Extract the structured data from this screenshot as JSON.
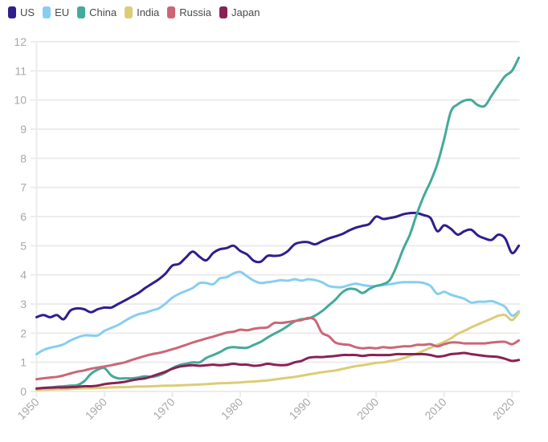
{
  "chart_data": {
    "type": "line",
    "title": "",
    "xlabel": "",
    "ylabel": "",
    "xlim": [
      1950,
      2021
    ],
    "ylim": [
      0,
      12
    ],
    "grid": true,
    "legend_position": "top-left",
    "y_ticks": [
      "0",
      "1",
      "2",
      "3",
      "4",
      "5",
      "6",
      "7",
      "8",
      "9",
      "10",
      "11",
      "12"
    ],
    "x_ticks": [
      "1950",
      "1960",
      "1970",
      "1980",
      "1990",
      "2000",
      "2010",
      "2020"
    ],
    "x_tick_values": [
      1950,
      1960,
      1970,
      1980,
      1990,
      2000,
      2010,
      2020
    ],
    "x": [
      1950,
      1951,
      1952,
      1953,
      1954,
      1955,
      1956,
      1957,
      1958,
      1959,
      1960,
      1961,
      1962,
      1963,
      1964,
      1965,
      1966,
      1967,
      1968,
      1969,
      1970,
      1971,
      1972,
      1973,
      1974,
      1975,
      1976,
      1977,
      1978,
      1979,
      1980,
      1981,
      1982,
      1983,
      1984,
      1985,
      1986,
      1987,
      1988,
      1989,
      1990,
      1991,
      1992,
      1993,
      1994,
      1995,
      1996,
      1997,
      1998,
      1999,
      2000,
      2001,
      2002,
      2003,
      2004,
      2005,
      2006,
      2007,
      2008,
      2009,
      2010,
      2011,
      2012,
      2013,
      2014,
      2015,
      2016,
      2017,
      2018,
      2019,
      2020,
      2021
    ],
    "series": [
      {
        "name": "US",
        "color": "#2e1f8c",
        "values": [
          2.55,
          2.62,
          2.55,
          2.62,
          2.48,
          2.78,
          2.85,
          2.82,
          2.72,
          2.82,
          2.88,
          2.88,
          3.0,
          3.12,
          3.25,
          3.38,
          3.55,
          3.7,
          3.85,
          4.05,
          4.32,
          4.38,
          4.6,
          4.8,
          4.62,
          4.5,
          4.75,
          4.88,
          4.92,
          5.0,
          4.82,
          4.7,
          4.48,
          4.45,
          4.65,
          4.65,
          4.68,
          4.82,
          5.05,
          5.12,
          5.12,
          5.05,
          5.15,
          5.25,
          5.32,
          5.4,
          5.52,
          5.62,
          5.68,
          5.75,
          6.0,
          5.92,
          5.95,
          6.0,
          6.08,
          6.12,
          6.12,
          6.05,
          5.95,
          5.5,
          5.7,
          5.58,
          5.38,
          5.5,
          5.55,
          5.35,
          5.25,
          5.2,
          5.38,
          5.25,
          4.75,
          5.0
        ]
      },
      {
        "name": "EU",
        "color": "#87cef0",
        "values": [
          1.28,
          1.42,
          1.5,
          1.55,
          1.62,
          1.75,
          1.85,
          1.92,
          1.92,
          1.92,
          2.08,
          2.18,
          2.28,
          2.42,
          2.55,
          2.65,
          2.7,
          2.78,
          2.85,
          3.02,
          3.22,
          3.35,
          3.45,
          3.55,
          3.72,
          3.72,
          3.68,
          3.88,
          3.92,
          4.05,
          4.1,
          3.95,
          3.8,
          3.72,
          3.75,
          3.78,
          3.82,
          3.8,
          3.85,
          3.8,
          3.85,
          3.82,
          3.75,
          3.62,
          3.58,
          3.58,
          3.65,
          3.7,
          3.65,
          3.62,
          3.62,
          3.65,
          3.68,
          3.72,
          3.75,
          3.75,
          3.75,
          3.72,
          3.62,
          3.35,
          3.42,
          3.32,
          3.25,
          3.18,
          3.05,
          3.08,
          3.08,
          3.1,
          3.02,
          2.9,
          2.6,
          2.75
        ]
      },
      {
        "name": "China",
        "color": "#44aa99",
        "values": [
          0.1,
          0.12,
          0.14,
          0.16,
          0.18,
          0.2,
          0.22,
          0.35,
          0.6,
          0.75,
          0.8,
          0.55,
          0.45,
          0.45,
          0.45,
          0.48,
          0.52,
          0.5,
          0.55,
          0.65,
          0.8,
          0.9,
          0.95,
          1.0,
          1.0,
          1.15,
          1.25,
          1.35,
          1.48,
          1.52,
          1.5,
          1.5,
          1.6,
          1.7,
          1.85,
          1.98,
          2.1,
          2.25,
          2.4,
          2.48,
          2.5,
          2.6,
          2.75,
          2.95,
          3.15,
          3.4,
          3.52,
          3.5,
          3.38,
          3.52,
          3.62,
          3.68,
          3.82,
          4.3,
          4.9,
          5.4,
          6.1,
          6.7,
          7.2,
          7.8,
          8.65,
          9.6,
          9.85,
          9.98,
          10.0,
          9.82,
          9.8,
          10.15,
          10.5,
          10.82,
          11.0,
          11.45
        ]
      },
      {
        "name": "India",
        "color": "#ddcc77",
        "values": [
          0.05,
          0.06,
          0.07,
          0.08,
          0.08,
          0.09,
          0.1,
          0.11,
          0.11,
          0.12,
          0.13,
          0.14,
          0.15,
          0.15,
          0.16,
          0.17,
          0.17,
          0.18,
          0.19,
          0.2,
          0.2,
          0.21,
          0.22,
          0.23,
          0.24,
          0.25,
          0.27,
          0.28,
          0.29,
          0.3,
          0.31,
          0.33,
          0.34,
          0.36,
          0.38,
          0.41,
          0.44,
          0.47,
          0.5,
          0.54,
          0.58,
          0.62,
          0.66,
          0.69,
          0.72,
          0.77,
          0.82,
          0.87,
          0.9,
          0.94,
          0.98,
          1.0,
          1.04,
          1.08,
          1.14,
          1.22,
          1.3,
          1.4,
          1.5,
          1.6,
          1.7,
          1.82,
          1.98,
          2.08,
          2.2,
          2.3,
          2.4,
          2.5,
          2.6,
          2.62,
          2.45,
          2.7
        ]
      },
      {
        "name": "Russia",
        "color": "#cc6677",
        "values": [
          0.42,
          0.45,
          0.48,
          0.5,
          0.55,
          0.62,
          0.68,
          0.72,
          0.78,
          0.82,
          0.86,
          0.9,
          0.95,
          1.0,
          1.08,
          1.15,
          1.22,
          1.28,
          1.32,
          1.38,
          1.45,
          1.52,
          1.6,
          1.68,
          1.75,
          1.82,
          1.88,
          1.95,
          2.02,
          2.05,
          2.12,
          2.1,
          2.15,
          2.18,
          2.2,
          2.35,
          2.35,
          2.38,
          2.42,
          2.45,
          2.52,
          2.45,
          2.02,
          1.9,
          1.68,
          1.62,
          1.6,
          1.52,
          1.48,
          1.5,
          1.48,
          1.52,
          1.5,
          1.52,
          1.55,
          1.55,
          1.6,
          1.6,
          1.62,
          1.55,
          1.62,
          1.68,
          1.68,
          1.65,
          1.65,
          1.65,
          1.65,
          1.68,
          1.7,
          1.7,
          1.62,
          1.75
        ]
      },
      {
        "name": "Japan",
        "color": "#882255",
        "values": [
          0.1,
          0.12,
          0.13,
          0.14,
          0.14,
          0.15,
          0.16,
          0.18,
          0.18,
          0.2,
          0.25,
          0.28,
          0.3,
          0.33,
          0.38,
          0.42,
          0.45,
          0.52,
          0.6,
          0.68,
          0.78,
          0.85,
          0.88,
          0.9,
          0.88,
          0.9,
          0.92,
          0.9,
          0.92,
          0.95,
          0.92,
          0.92,
          0.88,
          0.9,
          0.95,
          0.92,
          0.9,
          0.92,
          1.0,
          1.05,
          1.15,
          1.18,
          1.18,
          1.2,
          1.22,
          1.25,
          1.25,
          1.25,
          1.22,
          1.25,
          1.25,
          1.25,
          1.25,
          1.28,
          1.28,
          1.28,
          1.28,
          1.28,
          1.25,
          1.2,
          1.22,
          1.28,
          1.3,
          1.32,
          1.28,
          1.25,
          1.22,
          1.2,
          1.18,
          1.12,
          1.05,
          1.08
        ]
      }
    ]
  }
}
